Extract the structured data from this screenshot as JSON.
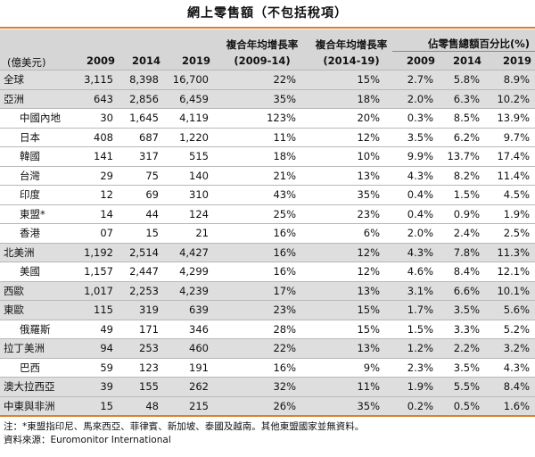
{
  "title": "網上零售額（不包括稅項）",
  "header": {
    "unit": "(億美元)",
    "cagr1_line1": "複合年均增長率",
    "cagr1_line2": "(2009-14)",
    "cagr2_line1": "複合年均增長率",
    "cagr2_line2": "(2014-19)",
    "share_group": "佔零售總額百分比(%)",
    "years": [
      "2009",
      "2014",
      "2019"
    ],
    "share_years": [
      "2009",
      "2014",
      "2019"
    ]
  },
  "rows": [
    {
      "name": "全球",
      "level": "region",
      "v2009": "3,115",
      "v2014": "8,398",
      "v2019": "16,700",
      "cagr1": "22%",
      "cagr2": "15%",
      "s2009": "2.7%",
      "s2014": "5.8%",
      "s2019": "8.9%"
    },
    {
      "name": "亞洲",
      "level": "region",
      "v2009": "643",
      "v2014": "2,856",
      "v2019": "6,459",
      "cagr1": "35%",
      "cagr2": "18%",
      "s2009": "2.0%",
      "s2014": "6.3%",
      "s2019": "10.2%"
    },
    {
      "name": "中國內地",
      "level": "sub",
      "v2009": "30",
      "v2014": "1,645",
      "v2019": "4,119",
      "cagr1": "123%",
      "cagr2": "20%",
      "s2009": "0.3%",
      "s2014": "8.5%",
      "s2019": "13.9%"
    },
    {
      "name": "日本",
      "level": "sub",
      "v2009": "408",
      "v2014": "687",
      "v2019": "1,220",
      "cagr1": "11%",
      "cagr2": "12%",
      "s2009": "3.5%",
      "s2014": "6.2%",
      "s2019": "9.7%"
    },
    {
      "name": "韓國",
      "level": "sub",
      "v2009": "141",
      "v2014": "317",
      "v2019": "515",
      "cagr1": "18%",
      "cagr2": "10%",
      "s2009": "9.9%",
      "s2014": "13.7%",
      "s2019": "17.4%"
    },
    {
      "name": "台灣",
      "level": "sub",
      "v2009": "29",
      "v2014": "75",
      "v2019": "140",
      "cagr1": "21%",
      "cagr2": "13%",
      "s2009": "4.3%",
      "s2014": "8.2%",
      "s2019": "11.4%"
    },
    {
      "name": "印度",
      "level": "sub",
      "v2009": "12",
      "v2014": "69",
      "v2019": "310",
      "cagr1": "43%",
      "cagr2": "35%",
      "s2009": "0.4%",
      "s2014": "1.5%",
      "s2019": "4.5%"
    },
    {
      "name": "東盟*",
      "level": "sub",
      "v2009": "14",
      "v2014": "44",
      "v2019": "124",
      "cagr1": "25%",
      "cagr2": "23%",
      "s2009": "0.4%",
      "s2014": "0.9%",
      "s2019": "1.9%"
    },
    {
      "name": "香港",
      "level": "sub",
      "v2009": "07",
      "v2014": "15",
      "v2019": "21",
      "cagr1": "16%",
      "cagr2": "6%",
      "s2009": "2.0%",
      "s2014": "2.4%",
      "s2019": "2.5%"
    },
    {
      "name": "北美洲",
      "level": "region",
      "v2009": "1,192",
      "v2014": "2,514",
      "v2019": "4,427",
      "cagr1": "16%",
      "cagr2": "12%",
      "s2009": "4.3%",
      "s2014": "7.8%",
      "s2019": "11.3%"
    },
    {
      "name": "美國",
      "level": "sub",
      "v2009": "1,157",
      "v2014": "2,447",
      "v2019": "4,299",
      "cagr1": "16%",
      "cagr2": "12%",
      "s2009": "4.6%",
      "s2014": "8.4%",
      "s2019": "12.1%"
    },
    {
      "name": "西歐",
      "level": "region",
      "v2009": "1,017",
      "v2014": "2,253",
      "v2019": "4,239",
      "cagr1": "17%",
      "cagr2": "13%",
      "s2009": "3.1%",
      "s2014": "6.6%",
      "s2019": "10.1%"
    },
    {
      "name": "東歐",
      "level": "region",
      "v2009": "115",
      "v2014": "319",
      "v2019": "639",
      "cagr1": "23%",
      "cagr2": "15%",
      "s2009": "1.7%",
      "s2014": "3.5%",
      "s2019": "5.6%"
    },
    {
      "name": "俄羅斯",
      "level": "sub",
      "v2009": "49",
      "v2014": "171",
      "v2019": "346",
      "cagr1": "28%",
      "cagr2": "15%",
      "s2009": "1.5%",
      "s2014": "3.3%",
      "s2019": "5.2%"
    },
    {
      "name": "拉丁美洲",
      "level": "region",
      "v2009": "94",
      "v2014": "253",
      "v2019": "460",
      "cagr1": "22%",
      "cagr2": "13%",
      "s2009": "1.2%",
      "s2014": "2.2%",
      "s2019": "3.2%"
    },
    {
      "name": "巴西",
      "level": "sub",
      "v2009": "59",
      "v2014": "123",
      "v2019": "191",
      "cagr1": "16%",
      "cagr2": "9%",
      "s2009": "2.3%",
      "s2014": "3.5%",
      "s2019": "4.3%"
    },
    {
      "name": "澳大拉西亞",
      "level": "region",
      "v2009": "39",
      "v2014": "155",
      "v2019": "262",
      "cagr1": "32%",
      "cagr2": "11%",
      "s2009": "1.9%",
      "s2014": "5.5%",
      "s2019": "8.4%"
    },
    {
      "name": "中東與非洲",
      "level": "region",
      "v2009": "15",
      "v2014": "48",
      "v2019": "215",
      "cagr1": "26%",
      "cagr2": "35%",
      "s2009": "0.2%",
      "s2014": "0.5%",
      "s2019": "1.6%"
    }
  ],
  "footnote": "注：*東盟指印尼、馬來西亞、菲律賓、新加坡、泰國及越南。其他東盟國家並無資料。",
  "source": "資料來源：Euromonitor International"
}
